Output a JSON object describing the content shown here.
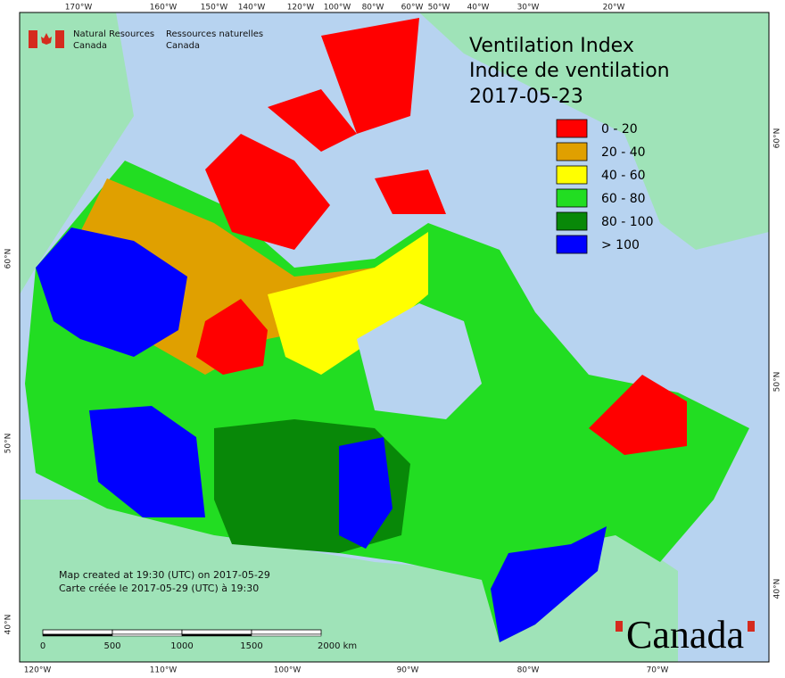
{
  "header": {
    "agency_en": [
      "Natural Resources",
      "Canada"
    ],
    "agency_fr": [
      "Ressources naturelles",
      "Canada"
    ]
  },
  "title": {
    "lines": [
      "Ventilation Index",
      "Indice de ventilation"
    ],
    "date": "2017-05-23"
  },
  "legend": [
    {
      "label": "0 - 20",
      "color": "#ff0000"
    },
    {
      "label": "20 - 40",
      "color": "#e0a000"
    },
    {
      "label": "40 - 60",
      "color": "#ffff00"
    },
    {
      "label": "60 - 80",
      "color": "#22dd22"
    },
    {
      "label": "80 - 100",
      "color": "#088808"
    },
    {
      "label": "> 100",
      "color": "#0000ff"
    }
  ],
  "graticule": {
    "top": [
      "170°W",
      "160°W",
      "150°W",
      "140°W",
      "120°W",
      "100°W",
      "80°W",
      "60°W",
      "50°W",
      "40°W",
      "30°W",
      "20°W"
    ],
    "bottom": [
      "120°W",
      "110°W",
      "100°W",
      "90°W",
      "80°W",
      "70°W"
    ],
    "left": [
      "60°N",
      "50°N",
      "40°N"
    ],
    "right": [
      "60°N",
      "50°N",
      "40°N"
    ]
  },
  "credits": [
    "Map created at 19:30 (UTC) on 2017-05-29",
    "Carte créée le 2017-05-29 (UTC) à 19:30"
  ],
  "scale_bar": {
    "labels": [
      "0",
      "500",
      "1000",
      "1500",
      "2000 km"
    ]
  },
  "wordmark": "Canada"
}
